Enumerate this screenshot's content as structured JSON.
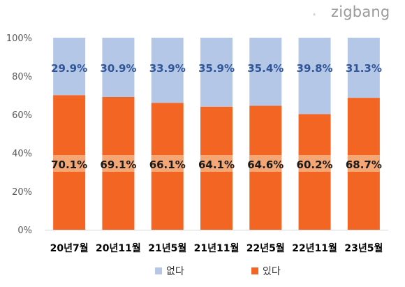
{
  "brand": {
    "logo_text": "zigbang"
  },
  "chart_data": {
    "type": "bar",
    "stacked": true,
    "categories": [
      "20년7월",
      "20년11월",
      "21년5월",
      "21년11월",
      "22년5월",
      "22년11월",
      "23년5월"
    ],
    "series": [
      {
        "name": "있다",
        "values": [
          70.1,
          69.1,
          66.1,
          64.1,
          64.6,
          60.2,
          68.7
        ],
        "color": "#f26522",
        "labels": [
          "70.1%",
          "69.1%",
          "66.1%",
          "64.1%",
          "64.6%",
          "60.2%",
          "68.7%"
        ]
      },
      {
        "name": "없다",
        "values": [
          29.9,
          30.9,
          33.9,
          35.9,
          35.4,
          39.8,
          31.3
        ],
        "color": "#b4c7e7",
        "labels": [
          "29.9%",
          "30.9%",
          "33.9%",
          "35.9%",
          "35.4%",
          "39.8%",
          "31.3%"
        ]
      }
    ],
    "ylim": [
      0,
      100
    ],
    "yticks": [
      "0%",
      "20%",
      "40%",
      "60%",
      "80%",
      "100%"
    ],
    "grid": false,
    "legend_position": "bottom",
    "legend": [
      "없다",
      "있다"
    ]
  }
}
